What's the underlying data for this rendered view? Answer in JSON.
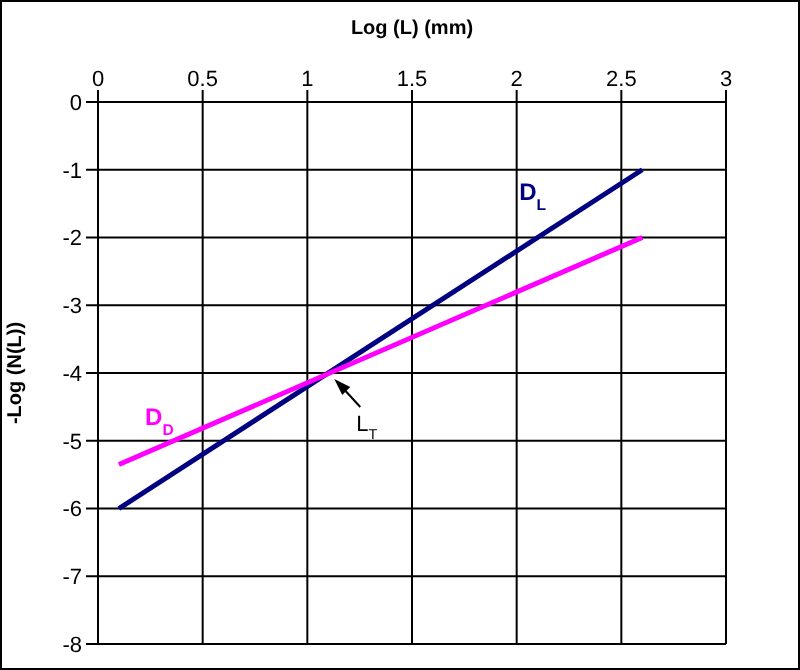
{
  "chart_data": {
    "type": "line",
    "xlabel": "Log (L) (mm)",
    "ylabel": "-Log (N(L))",
    "xlim": [
      0,
      3
    ],
    "xticks": [
      0,
      0.5,
      1,
      1.5,
      2,
      2.5,
      3
    ],
    "ylim": [
      -8,
      0
    ],
    "yticks": [
      0,
      -1,
      -2,
      -3,
      -4,
      -5,
      -6,
      -7,
      -8
    ],
    "x": [
      0.1,
      2.6
    ],
    "grid": true,
    "marker": "none",
    "line_style": "solid",
    "series": [
      {
        "name": "D$_{L}$",
        "color": "#000080",
        "values": [
          -6,
          -1
        ]
      },
      {
        "name": "D$_{D}$",
        "color": "#ff00ff",
        "values": [
          -5.35,
          -2
        ]
      }
    ],
    "annotations": [
      {
        "text": "L$_{T}$",
        "x": 1.1,
        "y": -4
      }
    ]
  }
}
